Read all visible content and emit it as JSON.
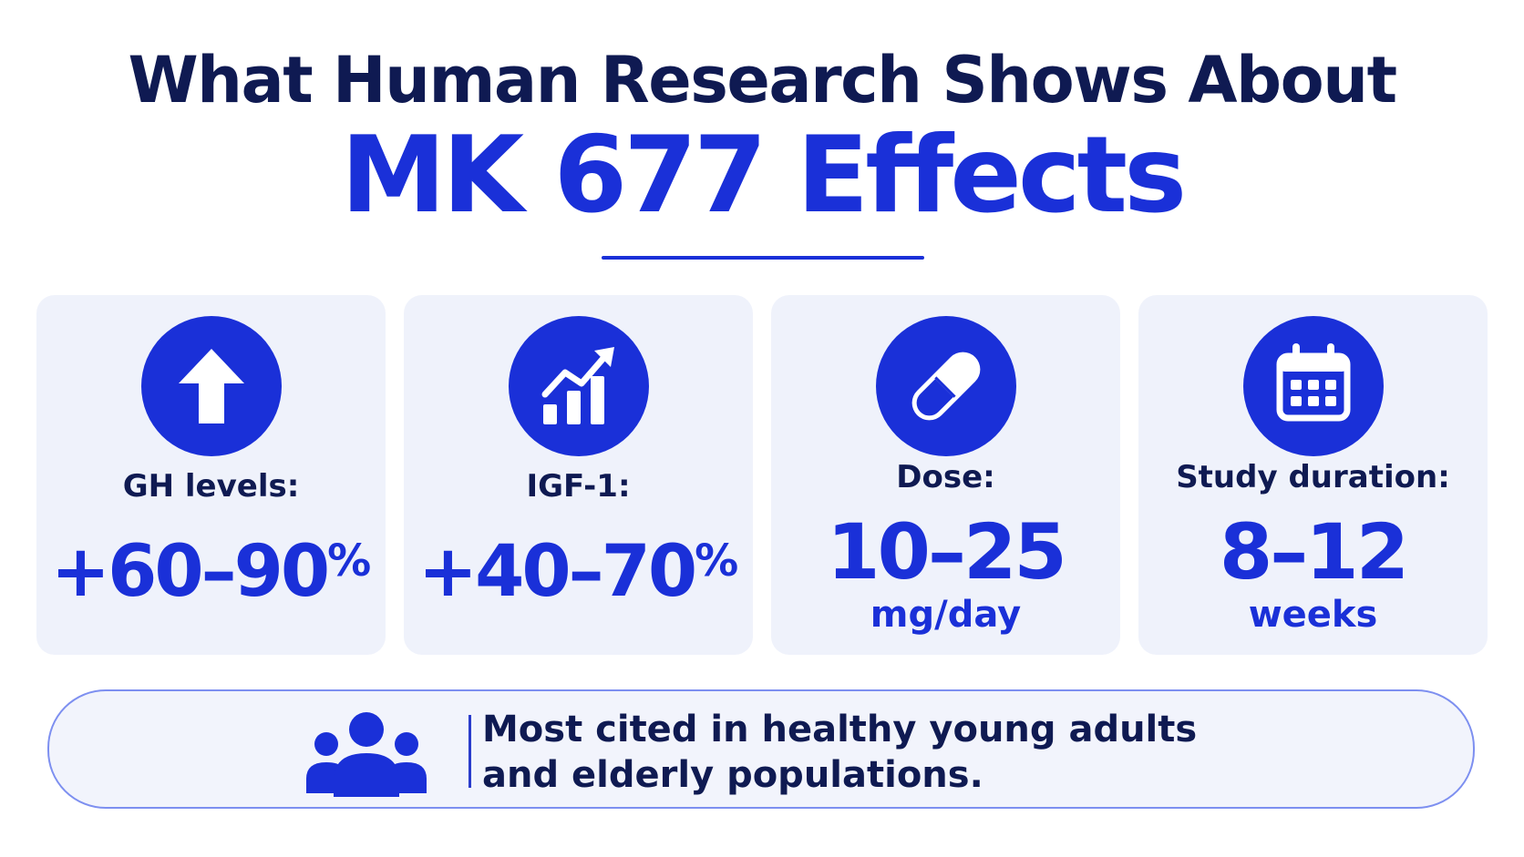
{
  "title": {
    "line1": "What Human Research Shows About",
    "line2": "MK 677 Effects"
  },
  "cards": [
    {
      "icon": "arrow-up-icon",
      "label": "GH levels:",
      "value": "+60–90",
      "value_suffix": "%"
    },
    {
      "icon": "chart-trend-icon",
      "label": "IGF-1:",
      "value": "+40–70",
      "value_suffix": "%"
    },
    {
      "icon": "capsule-icon",
      "label": "Dose:",
      "value": "10–25",
      "unit": "mg/day"
    },
    {
      "icon": "calendar-icon",
      "label": "Study duration:",
      "value": "8–12",
      "unit": "weeks"
    }
  ],
  "banner": {
    "icon": "people-group-icon",
    "line1": "Most cited in healthy young adults",
    "line2": "and elderly populations."
  },
  "colors": {
    "accent": "#1a30d8",
    "heading": "#0f1a52",
    "card_bg": "#eff2fb",
    "banner_border": "#7d8ff0"
  }
}
